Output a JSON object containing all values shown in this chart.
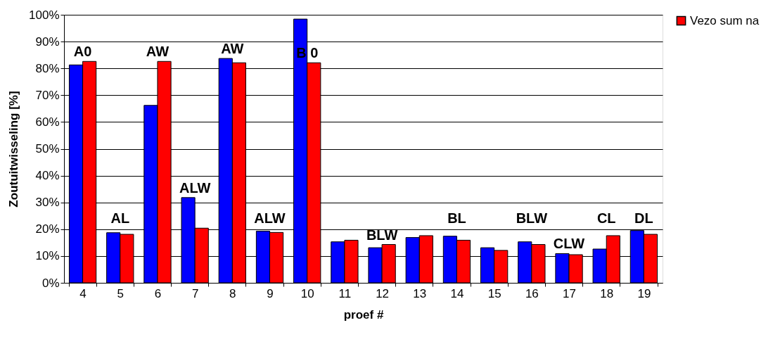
{
  "chart_data": {
    "type": "bar",
    "xlabel": "proef #",
    "ylabel": "Zoutuitwisseling [%]",
    "categories": [
      "4",
      "5",
      "6",
      "7",
      "8",
      "9",
      "10",
      "11",
      "12",
      "13",
      "14",
      "15",
      "16",
      "17",
      "18",
      "19"
    ],
    "series": [
      {
        "color": "#0000ff",
        "values": [
          81.3,
          18.7,
          66.2,
          31.8,
          83.7,
          19.3,
          98.4,
          15.3,
          13.1,
          16.9,
          17.4,
          13.1,
          15.3,
          10.9,
          12.6,
          19.5
        ]
      },
      {
        "name": "Vezo sum na",
        "color": "#ff0000",
        "values": [
          82.6,
          18.1,
          82.6,
          20.4,
          82.1,
          18.8,
          82.1,
          15.9,
          14.3,
          17.6,
          15.9,
          12.1,
          14.3,
          10.5,
          17.6,
          18.1
        ]
      }
    ],
    "ylim": [
      0,
      100
    ],
    "yticks": [
      {
        "value": 0,
        "label": "0%"
      },
      {
        "value": 10,
        "label": "10%"
      },
      {
        "value": 20,
        "label": "20%"
      },
      {
        "value": 30,
        "label": "30%"
      },
      {
        "value": 40,
        "label": "40%"
      },
      {
        "value": 50,
        "label": "50%"
      },
      {
        "value": 60,
        "label": "60%"
      },
      {
        "value": 70,
        "label": "70%"
      },
      {
        "value": 80,
        "label": "80%"
      },
      {
        "value": 90,
        "label": "90%"
      },
      {
        "value": 100,
        "label": "100%"
      }
    ],
    "annotations": [
      {
        "text": "A0",
        "x": "4",
        "y": 82.6
      },
      {
        "text": "AL",
        "x": "5",
        "y": 18.7
      },
      {
        "text": "AW",
        "x": "6",
        "y": 82.6
      },
      {
        "text": "ALW",
        "x": "7",
        "y": 31.8
      },
      {
        "text": "AW",
        "x": "8",
        "y": 83.7
      },
      {
        "text": "ALW",
        "x": "9",
        "y": 19.3
      },
      {
        "text": "B 0",
        "x": "10",
        "y": 82.1
      },
      {
        "text": "BLW",
        "x": "12",
        "y": 14.3
      },
      {
        "text": "BL",
        "x": "14",
        "y": 17.4
      },
      {
        "text": "BLW",
        "x": "16",
        "y": 15.3
      },
      {
        "text": "CLW",
        "x": "17",
        "y": 10.9
      },
      {
        "text": "CL",
        "x": "18",
        "y": 17.6
      },
      {
        "text": "DL",
        "x": "19",
        "y": 19.5
      }
    ],
    "grid": "y",
    "legend": "right"
  }
}
